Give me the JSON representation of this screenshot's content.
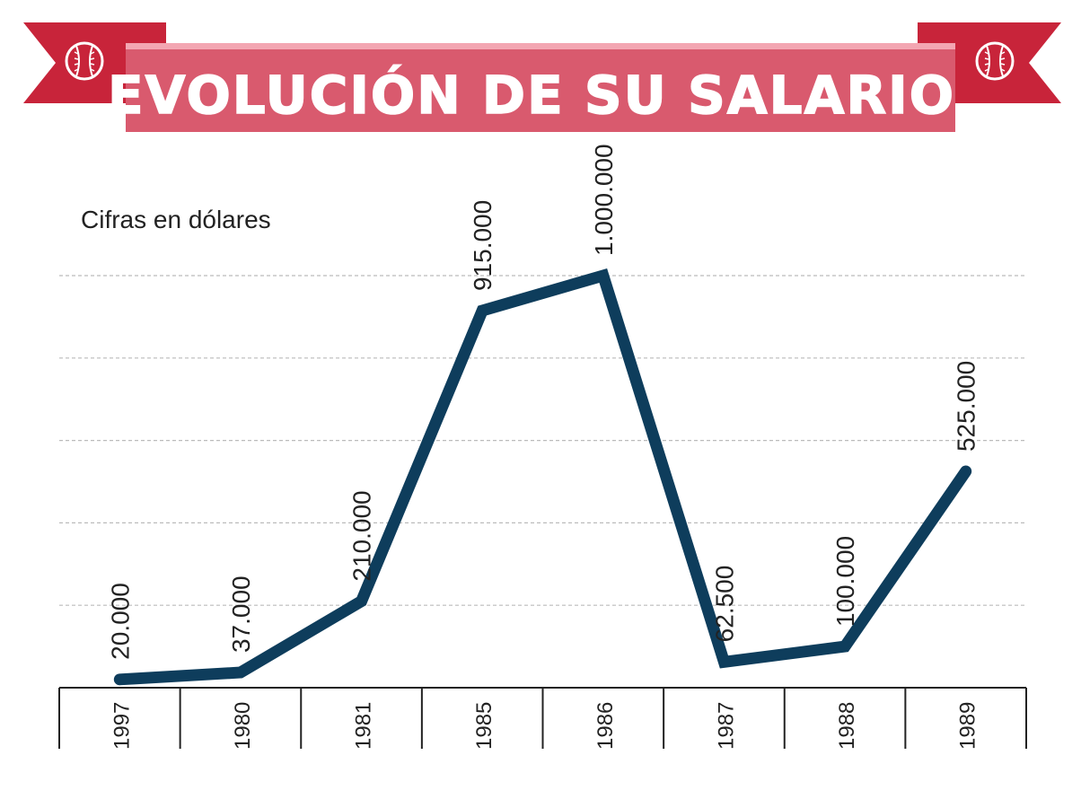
{
  "banner": {
    "title": "EVOLUCIÓN DE SU SALARIO",
    "ribbon_color": "#c8243a",
    "banner_color": "#d95a6e",
    "banner_highlight": "#f3a6b2",
    "left_icon": "baseball-icon",
    "right_icon": "baseball-icon"
  },
  "chart_data": {
    "type": "line",
    "subtitle": "Cifras en dólares",
    "categories": [
      "1997",
      "1980",
      "1981",
      "1985",
      "1986",
      "1987",
      "1988",
      "1989"
    ],
    "values": [
      20000,
      37000,
      210000,
      915000,
      1000000,
      62500,
      100000,
      525000
    ],
    "value_labels": [
      "20.000",
      "37.000",
      "210.000",
      "915.000",
      "1.000.000",
      "62.500",
      "100.000",
      "525.000"
    ],
    "ylim": [
      0,
      1000000
    ],
    "grid": true,
    "line_color": "#0e3d5c",
    "grid_color": "#bbbbbb"
  }
}
